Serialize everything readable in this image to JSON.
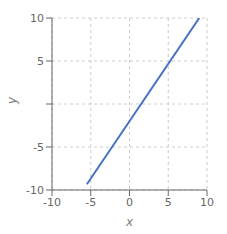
{
  "chart_data": {
    "type": "line",
    "x": [
      -5.5,
      9.0
    ],
    "values": [
      -9.333333333333334,
      10
    ],
    "color": "#4472c4",
    "xlim": [
      -10,
      10
    ],
    "xticks": [
      -10,
      -5,
      0,
      5,
      10
    ],
    "ylim": [
      -10,
      10
    ],
    "yticks": [
      -10,
      -5,
      {
        "value": 0,
        "label": ""
      },
      5,
      10
    ],
    "grid": true,
    "xlabel": "x",
    "ylabel": "y"
  }
}
